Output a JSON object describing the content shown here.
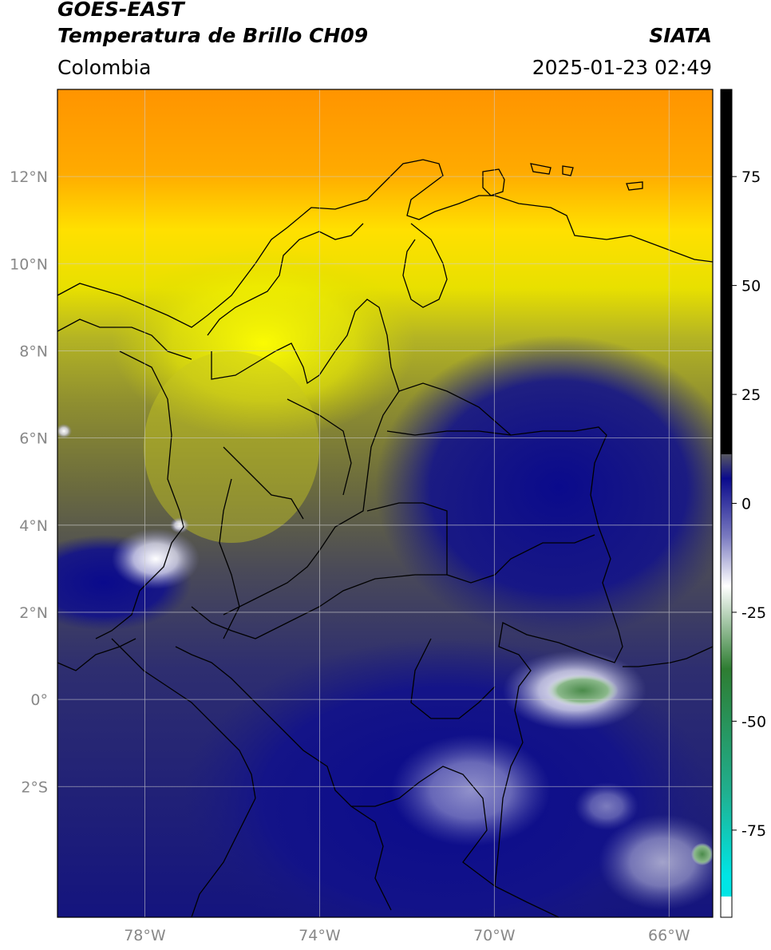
{
  "header": {
    "title_line1": "GOES-EAST",
    "title_line2": "Temperatura de Brillo CH09",
    "brand": "SIATA",
    "region": "Colombia",
    "datetime": "2025-01-23 02:49"
  },
  "map": {
    "lon_range": [
      -80,
      -65
    ],
    "lat_range": [
      -5,
      14
    ],
    "lat_ticks": [
      {
        "value": 12,
        "label": "12°N"
      },
      {
        "value": 10,
        "label": "10°N"
      },
      {
        "value": 8,
        "label": "8°N"
      },
      {
        "value": 6,
        "label": "6°N"
      },
      {
        "value": 4,
        "label": "4°N"
      },
      {
        "value": 2,
        "label": "2°N"
      },
      {
        "value": 0,
        "label": "0°"
      },
      {
        "value": -2,
        "label": "2°S"
      }
    ],
    "lon_ticks": [
      {
        "value": -78,
        "label": "78°W"
      },
      {
        "value": -74,
        "label": "74°W"
      },
      {
        "value": -70,
        "label": "70°W"
      },
      {
        "value": -66,
        "label": "66°W"
      }
    ],
    "grid": true
  },
  "colorbar": {
    "range": [
      -95,
      95
    ],
    "ticks": [
      {
        "value": 75,
        "label": "75"
      },
      {
        "value": 50,
        "label": "50"
      },
      {
        "value": 25,
        "label": "25"
      },
      {
        "value": 0,
        "label": "0"
      },
      {
        "value": -25,
        "label": "-25"
      },
      {
        "value": -50,
        "label": "-50"
      },
      {
        "value": -75,
        "label": "-75"
      }
    ],
    "colors": {
      "warm_black": "#000000",
      "red": "#ff2a00",
      "orange": "#ff9a00",
      "yellow": "#ffff00",
      "olive": "#7d7d2a",
      "gray": "#4a4a55",
      "navy": "#0a0a8c",
      "white": "#ffffff",
      "green": "#2e7d32",
      "cyan": "#00e5e5"
    }
  }
}
